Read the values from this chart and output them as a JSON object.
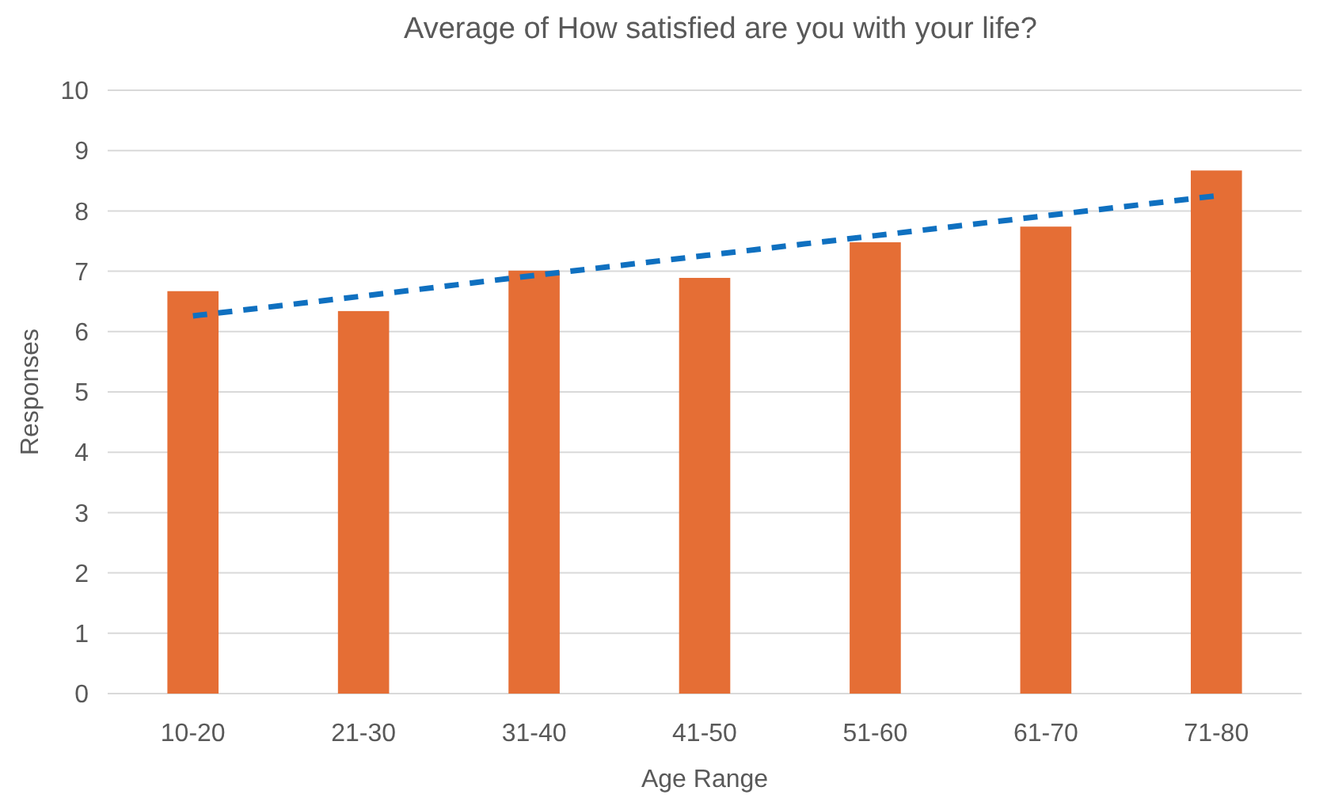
{
  "chart_data": {
    "type": "bar",
    "title": "Average of How satisfied are you with your life?",
    "xlabel": "Age Range",
    "ylabel": "Responses",
    "categories": [
      "10-20",
      "21-30",
      "31-40",
      "41-50",
      "51-60",
      "61-70",
      "71-80"
    ],
    "series": [
      {
        "color": "#e56e35",
        "values": [
          6.67,
          6.34,
          7.01,
          6.89,
          7.48,
          7.74,
          8.67
        ]
      },
      {
        "type": "line",
        "color": "#0f70c0",
        "line_style": "dashed",
        "marker": "none",
        "values": [
          6.26,
          6.59,
          6.93,
          7.26,
          7.59,
          7.92,
          8.25
        ]
      }
    ],
    "ylim": [
      0,
      10
    ],
    "yticks": [
      0,
      1,
      2,
      3,
      4,
      5,
      6,
      7,
      8,
      9,
      10
    ],
    "grid": "y"
  }
}
